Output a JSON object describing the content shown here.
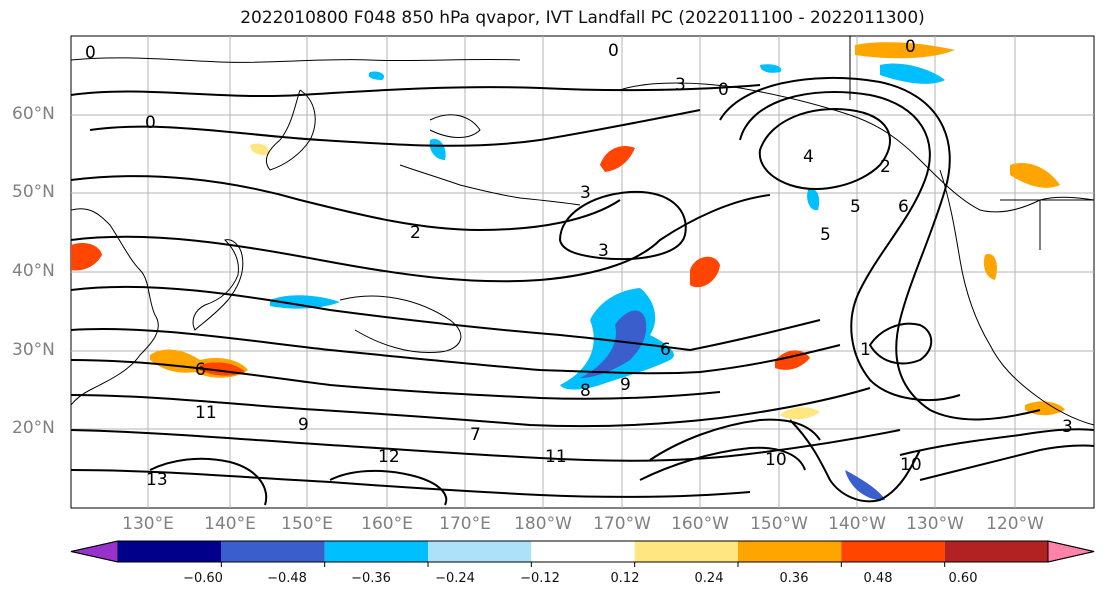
{
  "title": "2022010800 F048 850 hPa qvapor, IVT Landfall PC (2022011100 - 2022011300)",
  "lat_labels": [
    "60°N",
    "50°N",
    "40°N",
    "30°N",
    "20°N"
  ],
  "lon_labels": [
    "130°E",
    "140°E",
    "150°E",
    "160°E",
    "170°E",
    "180°W",
    "170°W",
    "160°W",
    "150°W",
    "140°W",
    "130°W",
    "120°W"
  ],
  "colorbar": {
    "labels": [
      "−0.60",
      "−0.48",
      "−0.36",
      "−0.24",
      "−0.12",
      "0.12",
      "0.24",
      "0.36",
      "0.48",
      "0.60"
    ],
    "colors": [
      "#9932CC",
      "#00008B",
      "#3A5FCD",
      "#00BFFF",
      "#ADE1FA",
      "#FFFFFF",
      "#FFE680",
      "#FFA500",
      "#FF4500",
      "#B22222",
      "#FF82AB"
    ]
  },
  "contour_labels": [
    "0",
    "0",
    "0",
    "0",
    "0",
    "3",
    "3",
    "3",
    "3",
    "4",
    "5",
    "5",
    "6",
    "6",
    "6",
    "7",
    "8",
    "9",
    "9",
    "10",
    "10",
    "11",
    "11",
    "12",
    "13",
    "1",
    "2",
    "2"
  ],
  "map_region": "North Pacific"
}
